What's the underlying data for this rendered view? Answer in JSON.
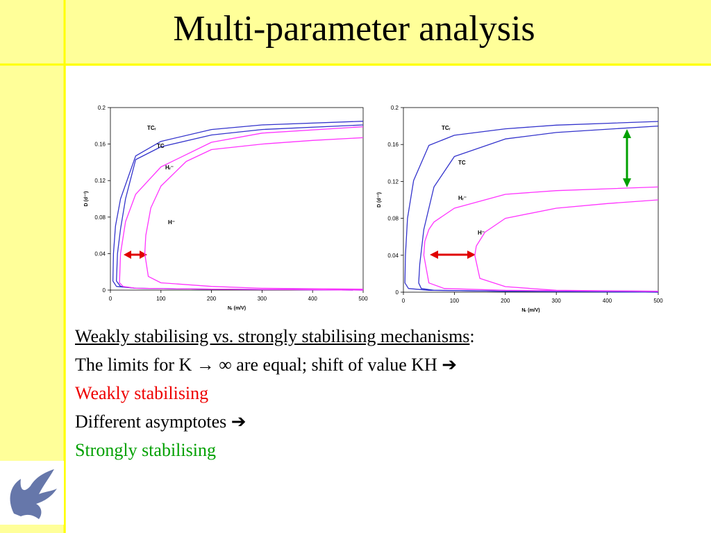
{
  "title": "Multi-parameter analysis",
  "chart_data": [
    {
      "type": "line",
      "ylabel": "D (d⁻¹)",
      "xlabel": "Nᵣ (m/V)",
      "xlim": [
        0,
        500
      ],
      "ylim": [
        0,
        0.2
      ],
      "xticks": [
        0,
        100,
        200,
        300,
        400,
        500
      ],
      "yticks": [
        0,
        0.04,
        0.08,
        0.12,
        0.16,
        0.2
      ],
      "series": [
        {
          "name": "TCᵣ",
          "color": "#3333cc",
          "x": [
            500,
            200,
            50,
            12,
            5,
            6,
            10,
            20,
            50,
            100,
            200,
            300,
            500
          ],
          "values": [
            0,
            0.001,
            0.002,
            0.004,
            0.01,
            0.04,
            0.07,
            0.1,
            0.147,
            0.163,
            0.176,
            0.181,
            0.185
          ]
        },
        {
          "name": "TC",
          "color": "#3333cc",
          "x": [
            500,
            200,
            50,
            20,
            12,
            14,
            20,
            30,
            50,
            100,
            200,
            300,
            500
          ],
          "values": [
            0,
            0.001,
            0.002,
            0.004,
            0.01,
            0.04,
            0.067,
            0.1,
            0.143,
            0.157,
            0.17,
            0.176,
            0.181
          ]
        },
        {
          "name": "Hᵣ⁻",
          "color": "#ff33ff",
          "x": [
            500,
            200,
            50,
            25,
            18,
            20,
            30,
            50,
            100,
            200,
            300,
            500
          ],
          "values": [
            0,
            0.001,
            0.002,
            0.004,
            0.008,
            0.04,
            0.075,
            0.105,
            0.135,
            0.162,
            0.172,
            0.179
          ]
        },
        {
          "name": "H⁻",
          "color": "#ff33ff",
          "x": [
            500,
            300,
            200,
            100,
            75,
            68,
            70,
            80,
            100,
            150,
            200,
            300,
            400,
            500
          ],
          "values": [
            0.001,
            0.002,
            0.004,
            0.008,
            0.015,
            0.04,
            0.06,
            0.09,
            0.114,
            0.141,
            0.154,
            0.16,
            0.164,
            0.167
          ]
        }
      ]
    },
    {
      "type": "line",
      "ylabel": "D (d⁻¹)",
      "xlabel": "Nᵣ (m/V)",
      "xlim": [
        0,
        500
      ],
      "ylim": [
        0,
        0.2
      ],
      "xticks": [
        0,
        100,
        200,
        300,
        400,
        500
      ],
      "yticks": [
        0,
        0.04,
        0.08,
        0.12,
        0.16,
        0.2
      ],
      "series": [
        {
          "name": "TCᵣ",
          "color": "#3333cc",
          "x": [
            500,
            200,
            50,
            10,
            3,
            4,
            8,
            20,
            50,
            100,
            200,
            300,
            500
          ],
          "values": [
            0,
            0.001,
            0.002,
            0.004,
            0.01,
            0.04,
            0.08,
            0.121,
            0.159,
            0.17,
            0.177,
            0.181,
            0.185
          ]
        },
        {
          "name": "TC",
          "color": "#3333cc",
          "x": [
            500,
            200,
            60,
            35,
            30,
            32,
            40,
            60,
            100,
            200,
            300,
            500
          ],
          "values": [
            0,
            0.001,
            0.002,
            0.004,
            0.01,
            0.03,
            0.068,
            0.114,
            0.147,
            0.166,
            0.173,
            0.18
          ]
        },
        {
          "name": "Hᵣ⁻",
          "color": "#ff33ff",
          "x": [
            500,
            200,
            80,
            50,
            40,
            42,
            50,
            60,
            100,
            200,
            300,
            500
          ],
          "values": [
            0.001,
            0.002,
            0.004,
            0.01,
            0.04,
            0.055,
            0.068,
            0.076,
            0.091,
            0.106,
            0.11,
            0.114
          ]
        },
        {
          "name": "H⁻",
          "color": "#ff33ff",
          "x": [
            500,
            300,
            200,
            150,
            140,
            143,
            160,
            200,
            300,
            400,
            500
          ],
          "values": [
            0.001,
            0.002,
            0.006,
            0.015,
            0.04,
            0.05,
            0.065,
            0.08,
            0.091,
            0.096,
            0.1
          ]
        }
      ]
    }
  ],
  "text": {
    "heading": "Weakly stabilising vs. strongly stabilising mechanisms",
    "heading_suffix": ":",
    "line1": "The limits for K → ∞ are equal; shift of value KH ➔",
    "line2": "Weakly stabilising",
    "line3": "Different asymptotes ➔",
    "line4": "Strongly stabilising"
  }
}
